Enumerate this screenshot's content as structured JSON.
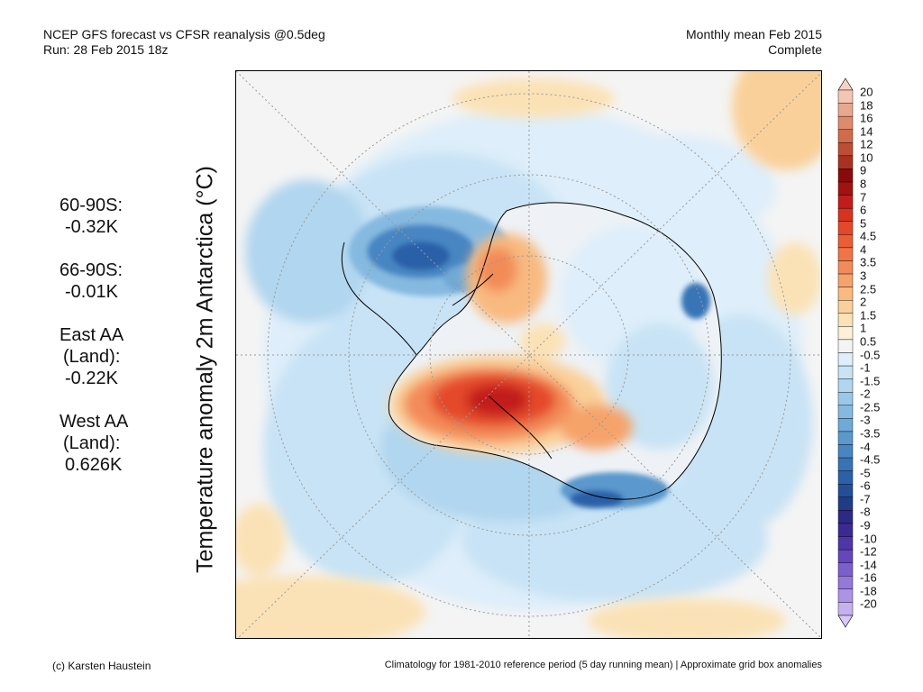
{
  "header": {
    "left_line1": "NCEP GFS forecast vs CFSR reanalysis @0.5deg",
    "left_line2": "Run: 28 Feb 2015 18z",
    "right_line1": "Monthly mean Feb 2015",
    "right_line2": "Complete"
  },
  "ylabel": "Temperature anomaly 2m Antarctica (°C)",
  "stats": [
    {
      "label": "60-90S:",
      "value": "-0.32K"
    },
    {
      "label": "66-90S:",
      "value": "-0.01K"
    },
    {
      "label": "East AA",
      "label2": "(Land):",
      "value": "-0.22K"
    },
    {
      "label": "West AA",
      "label2": "(Land):",
      "value": "0.626K"
    }
  ],
  "colorbar": {
    "levels": [
      "20",
      "18",
      "16",
      "14",
      "12",
      "10",
      "9",
      "8",
      "7",
      "6",
      "5",
      "4.5",
      "4",
      "3.5",
      "3",
      "2.5",
      "2",
      "1.5",
      "1",
      "0.5",
      "-0.5",
      "-1",
      "-1.5",
      "-2",
      "-2.5",
      "-3",
      "-3.5",
      "-4",
      "-4.5",
      "-5",
      "-6",
      "-7",
      "-8",
      "-9",
      "-10",
      "-12",
      "-14",
      "-16",
      "-18",
      "-20"
    ],
    "colors": [
      "#f2c6b3",
      "#e8a88e",
      "#de8b6c",
      "#d06b4c",
      "#bf4d35",
      "#a8321f",
      "#8a0a0a",
      "#a31212",
      "#c21c1c",
      "#d8331f",
      "#e4482a",
      "#ea5d35",
      "#ef7447",
      "#f38b58",
      "#f6a36b",
      "#f8ba80",
      "#fad09a",
      "#fbe2b6",
      "#fcf0d8",
      "#f4f4f4",
      "#deeefa",
      "#c8e3f5",
      "#b1d6ef",
      "#9bc8e8",
      "#85b9e0",
      "#6fa9d7",
      "#5a98cd",
      "#4786c2",
      "#3774b6",
      "#2b61a8",
      "#244f98",
      "#213c86",
      "#2c2a84",
      "#3c2a94",
      "#4e36a8",
      "#6447bc",
      "#7b5fcc",
      "#9478da",
      "#ad93e6",
      "#c6b1ef"
    ],
    "top_arrow_color": "#f5d3c4",
    "bottom_arrow_color": "#d8c8f5"
  },
  "footer": {
    "left": "(c) Karsten Haustein",
    "right": "Climatology for 1981-2010 reference period (5 day running mean) | Approximate grid box anomalies"
  }
}
